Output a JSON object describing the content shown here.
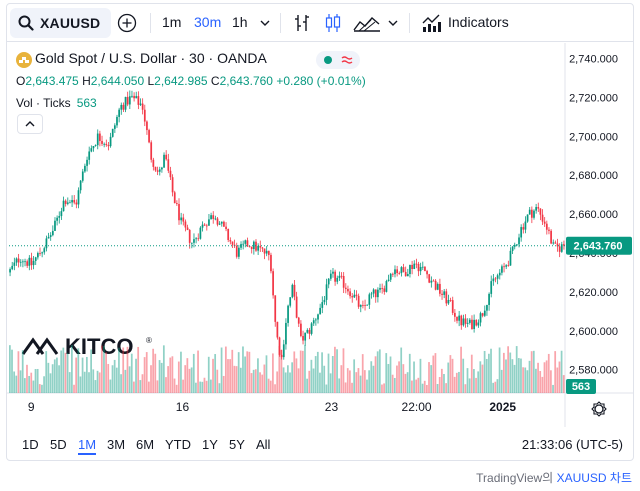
{
  "toolbar": {
    "symbol": "XAUUSD",
    "intervals": [
      "1m",
      "30m",
      "1h"
    ],
    "active_interval": "30m",
    "indicators_label": "Indicators"
  },
  "legend": {
    "title": "Gold Spot / U.S. Dollar · 30 · OANDA",
    "open_label": "O",
    "open": "2,643.475",
    "high_label": "H",
    "high": "2,644.050",
    "low_label": "L",
    "low": "2,642.985",
    "close_label": "C",
    "close": "2,643.760",
    "change": "+0.280 (+0.01%)",
    "volume_label": "Vol · Ticks",
    "volume": "563"
  },
  "ranges": [
    "1D",
    "5D",
    "1M",
    "3M",
    "6M",
    "YTD",
    "1Y",
    "5Y",
    "All"
  ],
  "active_range": "1M",
  "clock": "21:33:06 (UTC-5)",
  "attribution": {
    "brand": "TradingView의 ",
    "link": "XAUUSD 차트"
  },
  "watermark": "KITCO",
  "colors": {
    "up": "#089981",
    "down": "#f23645",
    "accent": "#2962ff"
  },
  "chart_data": {
    "type": "candlestick",
    "y_ticks": [
      "2,740.000",
      "2,720.000",
      "2,700.000",
      "2,680.000",
      "2,660.000",
      "2,640.000",
      "2,620.000",
      "2,600.000",
      "2,580.000"
    ],
    "y_tick_values": [
      2740,
      2720,
      2700,
      2680,
      2660,
      2640,
      2620,
      2600,
      2580
    ],
    "ylim": [
      2568,
      2748
    ],
    "x_ticks": [
      {
        "label": "9",
        "pos": 0.04
      },
      {
        "label": "16",
        "pos": 0.312
      },
      {
        "label": "23",
        "pos": 0.58
      },
      {
        "label": "22:00",
        "pos": 0.733
      },
      {
        "label": "2025",
        "pos": 0.888
      }
    ],
    "current_price": 2643.76,
    "current_price_label": "2,643.760",
    "current_volume_label": "563",
    "path": [
      {
        "t": 0.0,
        "p": 2630
      },
      {
        "t": 0.02,
        "p": 2638
      },
      {
        "t": 0.04,
        "p": 2634
      },
      {
        "t": 0.06,
        "p": 2642
      },
      {
        "t": 0.08,
        "p": 2652
      },
      {
        "t": 0.1,
        "p": 2668
      },
      {
        "t": 0.12,
        "p": 2665
      },
      {
        "t": 0.14,
        "p": 2690
      },
      {
        "t": 0.16,
        "p": 2700
      },
      {
        "t": 0.18,
        "p": 2696
      },
      {
        "t": 0.2,
        "p": 2715
      },
      {
        "t": 0.22,
        "p": 2720
      },
      {
        "t": 0.24,
        "p": 2716
      },
      {
        "t": 0.255,
        "p": 2690
      },
      {
        "t": 0.27,
        "p": 2680
      },
      {
        "t": 0.28,
        "p": 2690
      },
      {
        "t": 0.295,
        "p": 2670
      },
      {
        "t": 0.31,
        "p": 2655
      },
      {
        "t": 0.33,
        "p": 2645
      },
      {
        "t": 0.35,
        "p": 2655
      },
      {
        "t": 0.37,
        "p": 2660
      },
      {
        "t": 0.39,
        "p": 2650
      },
      {
        "t": 0.41,
        "p": 2640
      },
      {
        "t": 0.43,
        "p": 2645
      },
      {
        "t": 0.45,
        "p": 2642
      },
      {
        "t": 0.47,
        "p": 2638
      },
      {
        "t": 0.48,
        "p": 2600
      },
      {
        "t": 0.49,
        "p": 2585
      },
      {
        "t": 0.5,
        "p": 2610
      },
      {
        "t": 0.51,
        "p": 2622
      },
      {
        "t": 0.525,
        "p": 2595
      },
      {
        "t": 0.54,
        "p": 2600
      },
      {
        "t": 0.56,
        "p": 2612
      },
      {
        "t": 0.58,
        "p": 2628
      },
      {
        "t": 0.6,
        "p": 2625
      },
      {
        "t": 0.62,
        "p": 2618
      },
      {
        "t": 0.635,
        "p": 2610
      },
      {
        "t": 0.65,
        "p": 2618
      },
      {
        "t": 0.67,
        "p": 2620
      },
      {
        "t": 0.69,
        "p": 2632
      },
      {
        "t": 0.71,
        "p": 2630
      },
      {
        "t": 0.73,
        "p": 2635
      },
      {
        "t": 0.75,
        "p": 2630
      },
      {
        "t": 0.77,
        "p": 2622
      },
      {
        "t": 0.79,
        "p": 2615
      },
      {
        "t": 0.81,
        "p": 2605
      },
      {
        "t": 0.83,
        "p": 2603
      },
      {
        "t": 0.85,
        "p": 2608
      },
      {
        "t": 0.87,
        "p": 2625
      },
      {
        "t": 0.89,
        "p": 2632
      },
      {
        "t": 0.905,
        "p": 2640
      },
      {
        "t": 0.92,
        "p": 2652
      },
      {
        "t": 0.935,
        "p": 2660
      },
      {
        "t": 0.95,
        "p": 2663
      },
      {
        "t": 0.965,
        "p": 2655
      },
      {
        "t": 0.98,
        "p": 2642
      },
      {
        "t": 1.0,
        "p": 2643.76
      }
    ]
  }
}
